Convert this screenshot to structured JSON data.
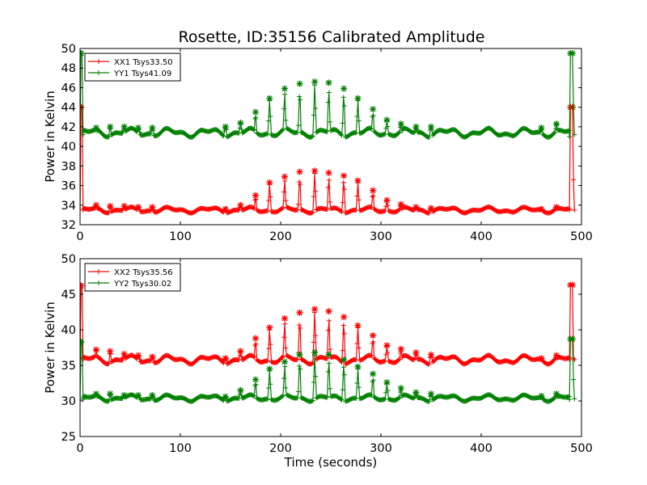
{
  "figure_title": "Rosette, ID:35156 Calibrated Amplitude",
  "colors": {
    "red": "#ff0000",
    "green": "#008000",
    "axes": "#000000"
  },
  "chart_data": [
    {
      "type": "line",
      "title": "Rosette, ID:35156 Calibrated Amplitude",
      "xlabel": "",
      "ylabel": "Power in Kelvin",
      "xlim": [
        0,
        500
      ],
      "ylim": [
        32,
        50
      ],
      "xticks": [
        0,
        100,
        200,
        300,
        400,
        500
      ],
      "yticks": [
        32,
        34,
        36,
        38,
        40,
        42,
        44,
        46,
        48,
        50
      ],
      "legend_position": "upper-left",
      "marker": "plus-star",
      "grid": false,
      "series": [
        {
          "name": "XX1 Tsys33.50",
          "color": "#ff0000",
          "base": 33.5,
          "wave_amp": 0.2,
          "spikes": [
            [
              16,
              34.0
            ],
            [
              30,
              33.9
            ],
            [
              44,
              33.9
            ],
            [
              58,
              33.8
            ],
            [
              72,
              33.8
            ],
            [
              145,
              33.6
            ],
            [
              160,
              34.0
            ],
            [
              175,
              35.0
            ],
            [
              189,
              36.3
            ],
            [
              204,
              36.9
            ],
            [
              219,
              37.4
            ],
            [
              234,
              37.5
            ],
            [
              248,
              37.3
            ],
            [
              263,
              37.0
            ],
            [
              277,
              36.5
            ],
            [
              292,
              35.5
            ],
            [
              306,
              34.5
            ],
            [
              320,
              34.1
            ],
            [
              335,
              33.8
            ],
            [
              350,
              33.7
            ],
            [
              460,
              33.6
            ],
            [
              475,
              33.8
            ]
          ],
          "edges": {
            "start": [
              [
                0,
                33.5
              ],
              [
                1,
                44.0
              ],
              [
                2,
                44.0
              ],
              [
                3,
                33.5
              ]
            ],
            "end": [
              [
                488,
                33.5
              ],
              [
                489,
                44.0
              ],
              [
                491,
                44.0
              ],
              [
                492,
                36.6
              ],
              [
                493,
                33.5
              ]
            ]
          }
        },
        {
          "name": "YY1 Tsys41.09",
          "color": "#008000",
          "base": 41.4,
          "wave_amp": 0.3,
          "spikes": [
            [
              16,
              41.9
            ],
            [
              30,
              42.0
            ],
            [
              44,
              42.0
            ],
            [
              58,
              41.9
            ],
            [
              72,
              41.9
            ],
            [
              145,
              42.0
            ],
            [
              160,
              42.4
            ],
            [
              175,
              43.5
            ],
            [
              189,
              44.9
            ],
            [
              204,
              45.9
            ],
            [
              219,
              46.4
            ],
            [
              234,
              46.6
            ],
            [
              248,
              46.5
            ],
            [
              263,
              45.9
            ],
            [
              277,
              44.9
            ],
            [
              292,
              43.8
            ],
            [
              306,
              42.7
            ],
            [
              320,
              42.3
            ],
            [
              335,
              42.0
            ],
            [
              350,
              42.0
            ],
            [
              460,
              41.9
            ],
            [
              475,
              42.3
            ]
          ],
          "edges": {
            "start": [
              [
                0,
                41.4
              ],
              [
                1,
                49.5
              ],
              [
                2,
                49.5
              ],
              [
                3,
                41.2
              ]
            ],
            "end": [
              [
                488,
                41.0
              ],
              [
                489,
                49.5
              ],
              [
                491,
                49.5
              ],
              [
                492,
                44.0
              ],
              [
                493,
                41.2
              ]
            ]
          }
        }
      ]
    },
    {
      "type": "line",
      "title": "",
      "xlabel": "Time (seconds)",
      "ylabel": "Power in Kelvin",
      "xlim": [
        0,
        500
      ],
      "ylim": [
        25,
        50
      ],
      "xticks": [
        0,
        100,
        200,
        300,
        400,
        500
      ],
      "yticks": [
        25,
        30,
        35,
        40,
        45,
        50
      ],
      "legend_position": "upper-left",
      "marker": "plus-star",
      "grid": false,
      "series": [
        {
          "name": "XX2 Tsys35.56",
          "color": "#ff0000",
          "base": 35.8,
          "wave_amp": 0.4,
          "spikes": [
            [
              16,
              37.2
            ],
            [
              30,
              37.0
            ],
            [
              44,
              36.6
            ],
            [
              58,
              36.4
            ],
            [
              72,
              36.2
            ],
            [
              145,
              36.0
            ],
            [
              160,
              37.0
            ],
            [
              175,
              38.8
            ],
            [
              189,
              40.3
            ],
            [
              204,
              41.6
            ],
            [
              219,
              42.4
            ],
            [
              234,
              42.9
            ],
            [
              248,
              42.6
            ],
            [
              263,
              41.8
            ],
            [
              277,
              40.6
            ],
            [
              292,
              39.2
            ],
            [
              306,
              37.8
            ],
            [
              320,
              37.3
            ],
            [
              335,
              36.8
            ],
            [
              350,
              36.5
            ],
            [
              460,
              36.0
            ],
            [
              475,
              36.4
            ]
          ],
          "edges": {
            "start": [
              [
                0,
                36.0
              ],
              [
                1,
                46.2
              ],
              [
                2,
                46.2
              ],
              [
                3,
                35.8
              ]
            ],
            "end": [
              [
                488,
                35.8
              ],
              [
                489,
                46.3
              ],
              [
                491,
                46.3
              ],
              [
                492,
                36.0
              ],
              [
                493,
                35.8
              ]
            ]
          }
        },
        {
          "name": "YY2 Tsys30.02",
          "color": "#008000",
          "base": 30.4,
          "wave_amp": 0.3,
          "spikes": [
            [
              16,
              31.0
            ],
            [
              30,
              31.0
            ],
            [
              44,
              30.8
            ],
            [
              58,
              30.8
            ],
            [
              72,
              30.8
            ],
            [
              145,
              30.6
            ],
            [
              160,
              31.5
            ],
            [
              175,
              33.0
            ],
            [
              189,
              34.5
            ],
            [
              204,
              35.5
            ],
            [
              219,
              36.5
            ],
            [
              234,
              36.8
            ],
            [
              248,
              36.5
            ],
            [
              263,
              35.8
            ],
            [
              277,
              34.8
            ],
            [
              292,
              33.8
            ],
            [
              306,
              32.6
            ],
            [
              320,
              31.8
            ],
            [
              335,
              31.2
            ],
            [
              350,
              31.0
            ],
            [
              460,
              30.7
            ],
            [
              475,
              31.0
            ]
          ],
          "edges": {
            "start": [
              [
                0,
                30.4
              ],
              [
                1,
                38.3
              ],
              [
                2,
                38.3
              ],
              [
                3,
                30.2
              ]
            ],
            "end": [
              [
                488,
                30.2
              ],
              [
                489,
                38.7
              ],
              [
                491,
                38.7
              ],
              [
                492,
                33.0
              ],
              [
                493,
                30.3
              ]
            ]
          }
        }
      ]
    }
  ]
}
